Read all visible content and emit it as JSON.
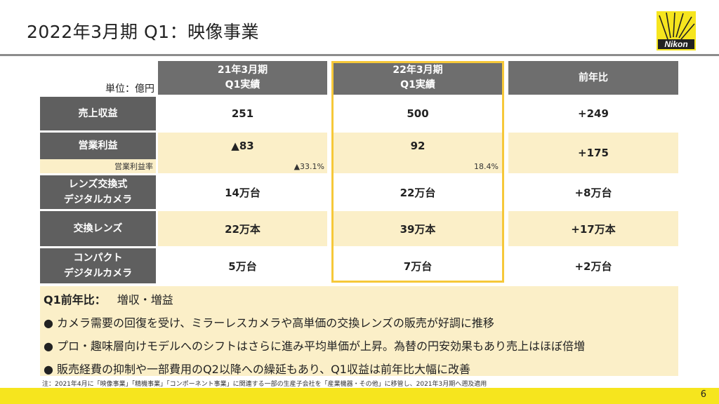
{
  "title": "2022年3月期 Q1：映像事業",
  "logo_text": "Nikon",
  "unit_label": "単位：億円",
  "columns": {
    "prev": [
      "21年3月期",
      "Q1実績"
    ],
    "curr": [
      "22年3月期",
      "Q1実績"
    ],
    "yoy": "前年比"
  },
  "rows": {
    "revenue": {
      "label": "売上収益",
      "prev": "251",
      "curr": "500",
      "yoy": "+249"
    },
    "op_profit": {
      "label": "営業利益",
      "prev": "▲83",
      "curr": "92",
      "yoy": "+175",
      "margin_label": "営業利益率",
      "prev_margin": "▲33.1%",
      "curr_margin": "18.4%"
    },
    "ilc": {
      "label": [
        "レンズ交換式",
        "デジタルカメラ"
      ],
      "prev": "14万台",
      "curr": "22万台",
      "yoy": "+8万台"
    },
    "lens": {
      "label": "交換レンズ",
      "prev": "22万本",
      "curr": "39万本",
      "yoy": "+17万本"
    },
    "compact": {
      "label": [
        "コンパクト",
        "デジタルカメラ"
      ],
      "prev": "5万台",
      "curr": "7万台",
      "yoy": "+2万台"
    }
  },
  "summary": {
    "head_bold": "Q1前年比：",
    "head_text": "増収・増益",
    "bullets": [
      "カメラ需要の回復を受け、ミラーレスカメラや高単価の交換レンズの販売が好調に推移",
      "プロ・趣味層向けモデルへのシフトはさらに進み平均単価が上昇。為替の円安効果もあり売上はほぼ倍増",
      "販売経費の抑制や一部費用のQ2以降への繰延もあり、Q1収益は前年比大幅に改善"
    ]
  },
  "note": "注：2021年4月に「映像事業」「精機事業」「コンポーネント事業」に関連する一部の生産子会社を「産業機器・その他」に移管し、2021年3月期へ遡及適用",
  "page_number": "6",
  "colors": {
    "accent_yellow": "#f6c839",
    "row_yellow": "#fbefc8",
    "header_gray": "#6e6e6e",
    "footer_yellow": "#f6e51e"
  }
}
